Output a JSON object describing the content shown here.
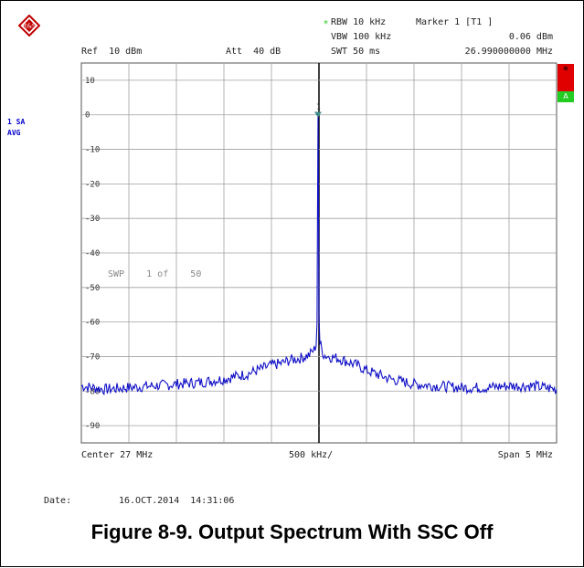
{
  "header": {
    "rbw": "RBW 10 kHz",
    "vbw": "VBW 100 kHz",
    "swt": "SWT 50 ms",
    "marker_title": "Marker 1 [T1 ]",
    "marker_level": "0.06 dBm",
    "marker_freq": "26.990000000 MHz",
    "ref": "Ref  10 dBm",
    "att": "Att  40 dB"
  },
  "side": {
    "trace_tag_line1": "1 SA",
    "trace_tag_line2": "AVG",
    "red_badge": "*",
    "green_badge": "A"
  },
  "sweep_text": "SWP    1 of    50",
  "footer": {
    "center": "Center 27 MHz",
    "span_per_div": "500 kHz/",
    "span": "Span 5 MHz",
    "date_label": "Date:",
    "date_value": "16.OCT.2014  14:31:06"
  },
  "caption": "Figure 8-9. Output Spectrum With SSC Off",
  "colors": {
    "trace": "#1010c8",
    "marker": "#3a8a8a",
    "grid": "#a0a0a0",
    "center_line": "#000000"
  },
  "chart_data": {
    "type": "line",
    "title": "",
    "xlabel": "",
    "ylabel": "",
    "x_unit": "MHz",
    "y_unit": "dBm",
    "xlim": [
      24.5,
      29.5
    ],
    "ylim": [
      -95,
      15
    ],
    "y_ticks": [
      "10",
      "0",
      "-10",
      "-20",
      "-30",
      "-40",
      "-50",
      "-60",
      "-70",
      "-80",
      "-90"
    ],
    "y_tick_values": [
      10,
      0,
      -10,
      -20,
      -30,
      -40,
      -50,
      -60,
      -70,
      -80,
      -90
    ],
    "grid": true,
    "series": [
      {
        "x": [
          24.5,
          24.75,
          25.0,
          25.25,
          25.5,
          25.75,
          26.0,
          26.25,
          26.5,
          26.6,
          26.7,
          26.8,
          26.9,
          26.95,
          26.97,
          26.98,
          26.985,
          26.99,
          26.995,
          27.0,
          27.01,
          27.03,
          27.05,
          27.1,
          27.2,
          27.3,
          27.4,
          27.5,
          27.75,
          28.0,
          28.25,
          28.5,
          28.75,
          29.0,
          29.25,
          29.5
        ],
        "y": [
          -78.5,
          -79.5,
          -79.0,
          -78.5,
          -78.0,
          -77.5,
          -76.5,
          -75.0,
          -72.5,
          -72.0,
          -71.0,
          -70.5,
          -69.5,
          -68.0,
          -66.5,
          -60.0,
          -30.0,
          0.06,
          -25.0,
          -58.0,
          -66.0,
          -68.0,
          -69.5,
          -70.0,
          -70.5,
          -71.5,
          -72.5,
          -74.0,
          -76.5,
          -78.0,
          -78.5,
          -79.0,
          -79.0,
          -78.5,
          -78.5,
          -79.5
        ]
      }
    ],
    "marker": {
      "label": "1",
      "x": 26.99,
      "y": 0.06
    }
  }
}
